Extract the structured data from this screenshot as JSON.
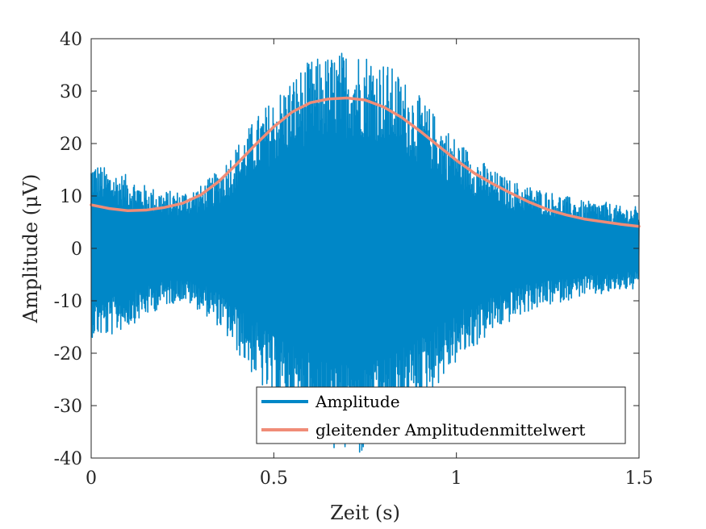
{
  "chart_data": {
    "type": "line",
    "xlabel": "Zeit (s)",
    "ylabel": "Amplitude (μV)",
    "xlim": [
      0,
      1.5
    ],
    "ylim": [
      -40,
      40
    ],
    "xticks": [
      0,
      0.5,
      1,
      1.5
    ],
    "xtick_labels": [
      "0",
      "0.5",
      "1",
      "1.5"
    ],
    "yticks": [
      -40,
      -30,
      -20,
      -10,
      0,
      10,
      20,
      30,
      40
    ],
    "ytick_labels": [
      "-40",
      "-30",
      "-20",
      "-10",
      "0",
      "10",
      "20",
      "30",
      "40"
    ],
    "grid": false,
    "legend_position": "bottom-right",
    "series": [
      {
        "name": "Amplitude",
        "color": "#0087c7",
        "style": "oscillating signal, envelope ± upper-envelope values",
        "envelope_x": [
          0,
          0.05,
          0.1,
          0.15,
          0.2,
          0.25,
          0.3,
          0.35,
          0.4,
          0.45,
          0.5,
          0.55,
          0.6,
          0.65,
          0.7,
          0.75,
          0.8,
          0.85,
          0.9,
          0.95,
          1.0,
          1.05,
          1.1,
          1.15,
          1.2,
          1.25,
          1.3,
          1.35,
          1.4,
          1.45,
          1.5
        ],
        "envelope_upper": [
          17,
          15,
          14,
          12,
          11,
          11,
          12,
          15,
          20,
          25,
          29,
          33,
          36,
          37,
          38,
          38,
          36,
          33,
          29,
          25,
          21,
          18,
          15,
          13,
          12,
          11,
          10,
          9,
          9,
          8,
          8
        ],
        "envelope_lower": [
          -17,
          -17,
          -15,
          -13,
          -11,
          -10,
          -12,
          -15,
          -20,
          -25,
          -30,
          -33,
          -36,
          -38,
          -40,
          -40,
          -38,
          -34,
          -30,
          -26,
          -22,
          -19,
          -16,
          -14,
          -12,
          -11,
          -10,
          -9,
          -9,
          -8,
          -8
        ]
      },
      {
        "name": "gleitender Amplitudenmittelwert",
        "color": "#f08c77",
        "x": [
          0,
          0.05,
          0.1,
          0.15,
          0.2,
          0.25,
          0.3,
          0.35,
          0.4,
          0.45,
          0.5,
          0.55,
          0.6,
          0.65,
          0.7,
          0.75,
          0.8,
          0.85,
          0.9,
          0.95,
          1.0,
          1.05,
          1.1,
          1.15,
          1.2,
          1.25,
          1.3,
          1.35,
          1.4,
          1.45,
          1.5
        ],
        "y": [
          8.3,
          7.6,
          7.2,
          7.3,
          7.8,
          8.6,
          10.2,
          12.8,
          16.2,
          19.8,
          23.2,
          26.0,
          27.8,
          28.5,
          28.7,
          28.3,
          27.0,
          25.0,
          22.4,
          19.6,
          16.8,
          14.3,
          12.3,
          10.5,
          8.8,
          7.4,
          6.4,
          5.6,
          5.1,
          4.6,
          4.2
        ]
      }
    ],
    "colors": {
      "axes": "#262626",
      "background": "#ffffff"
    }
  }
}
